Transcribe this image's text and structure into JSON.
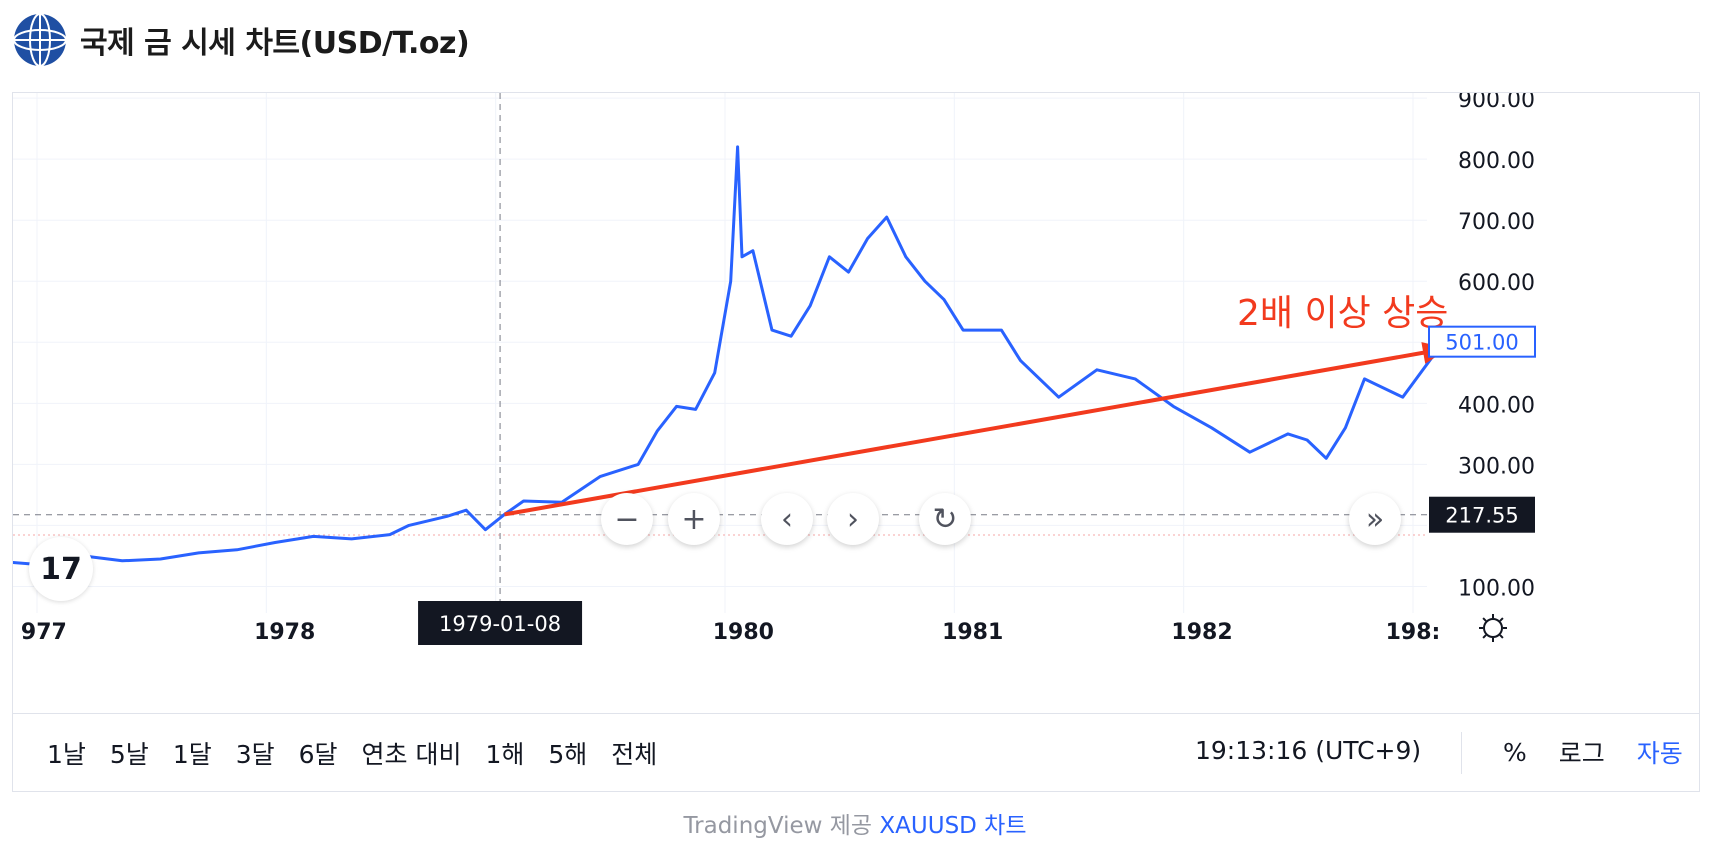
{
  "header": {
    "title": "국제 금 시세 차트(USD/T.oz)",
    "logo_icon": "globe-logo-icon"
  },
  "chart_data": {
    "type": "line",
    "x_tick_labels": [
      "977",
      "1978",
      "1980",
      "1981",
      "1982",
      "198:"
    ],
    "y_tick_labels": [
      "900.00",
      "800.00",
      "700.00",
      "600.00",
      "400.00",
      "300.00",
      "100.00"
    ],
    "ylim": [
      50,
      910
    ],
    "series": [
      {
        "color": "#2962ff",
        "x": [
          "1976-11",
          "1977-01",
          "1977-03",
          "1977-05",
          "1977-07",
          "1977-09",
          "1977-11",
          "1978-01",
          "1978-03",
          "1978-05",
          "1978-07",
          "1978-08",
          "1978-10",
          "1978-11",
          "1978-12",
          "1979-01",
          "1979-02",
          "1979-04",
          "1979-06",
          "1979-08",
          "1979-09",
          "1979-10",
          "1979-11",
          "1979-12",
          "1980-01-10",
          "1980-01-21",
          "1980-01-28",
          "1980-02",
          "1980-03",
          "1980-04",
          "1980-05",
          "1980-06",
          "1980-07",
          "1980-08",
          "1980-09",
          "1980-10",
          "1980-11",
          "1980-12",
          "1981-01",
          "1981-03",
          "1981-04",
          "1981-06",
          "1981-08",
          "1981-10",
          "1981-12",
          "1982-02",
          "1982-04",
          "1982-06",
          "1982-07",
          "1982-08",
          "1982-09",
          "1982-10",
          "1982-12",
          "1983-02"
        ],
        "values": [
          140,
          135,
          150,
          142,
          145,
          155,
          160,
          172,
          182,
          178,
          185,
          200,
          215,
          225,
          193,
          218,
          240,
          238,
          280,
          300,
          355,
          395,
          390,
          450,
          600,
          820,
          640,
          650,
          520,
          510,
          560,
          640,
          615,
          670,
          705,
          640,
          600,
          570,
          520,
          520,
          470,
          410,
          455,
          440,
          395,
          360,
          320,
          350,
          340,
          310,
          360,
          440,
          410,
          495
        ]
      }
    ],
    "crosshair": {
      "date": "1979-01-08",
      "price": "217.55"
    },
    "last_price": "501.00",
    "annotation": {
      "text": "2배 이상 상승",
      "from": [
        "1979-01",
        218
      ],
      "to": [
        "1983-02",
        490
      ],
      "color": "#f23a1e"
    }
  },
  "controls": {
    "zoom_out_icon": "minus-icon",
    "zoom_in_icon": "plus-icon",
    "scroll_left_icon": "chevron-left-icon",
    "scroll_right_icon": "chevron-right-icon",
    "reset_icon": "reset-icon",
    "scroll_end_icon": "double-chevron-right-icon",
    "settings_icon": "gear-icon",
    "tv_logo": "17"
  },
  "toolbar": {
    "ranges": [
      "1날",
      "5날",
      "1달",
      "3달",
      "6달",
      "연초 대비",
      "1해",
      "5해",
      "전체"
    ],
    "clock": "19:13:16 (UTC+9)",
    "percent": "%",
    "log": "로그",
    "auto": "자동"
  },
  "footer": {
    "provider": "TradingView 제공 ",
    "link": "XAUUSD 차트"
  }
}
